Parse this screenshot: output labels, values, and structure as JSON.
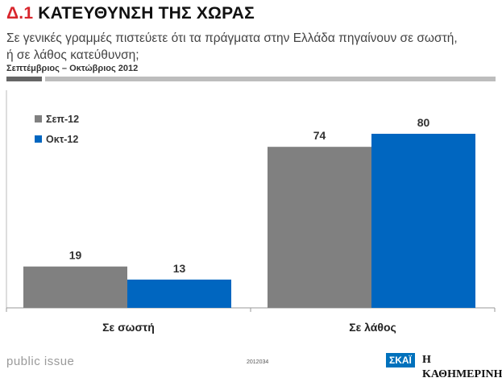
{
  "header": {
    "number": "Δ.1",
    "title": "ΚΑΤΕΥΘΥΝΣΗ ΤΗΣ ΧΩΡΑΣ",
    "question": "Σε γενικές γραμμές πιστεύετε ότι τα πράγματα στην Ελλάδα πηγαίνουν σε σωστή, ή σε λάθος κατεύθυνση;",
    "period": "Σεπτέμβριος – Οκτώβριος 2012"
  },
  "chart_data": {
    "type": "bar",
    "categories": [
      "Σε σωστή",
      "Σε λάθος"
    ],
    "series": [
      {
        "name": "Σεπ-12",
        "values": [
          19,
          74
        ],
        "color": "#808080"
      },
      {
        "name": "Οκτ-12",
        "values": [
          13,
          80
        ],
        "color": "#0066c0"
      }
    ],
    "ylim": [
      0,
      100
    ],
    "grid": false,
    "legend_position": "top-left"
  },
  "footer": {
    "source": "public issue",
    "code": "2012034",
    "logo_1": "ΣΚΑΪ",
    "logo_2": "Η ΚΑΘΗΜΕΡΙΝΗ"
  }
}
